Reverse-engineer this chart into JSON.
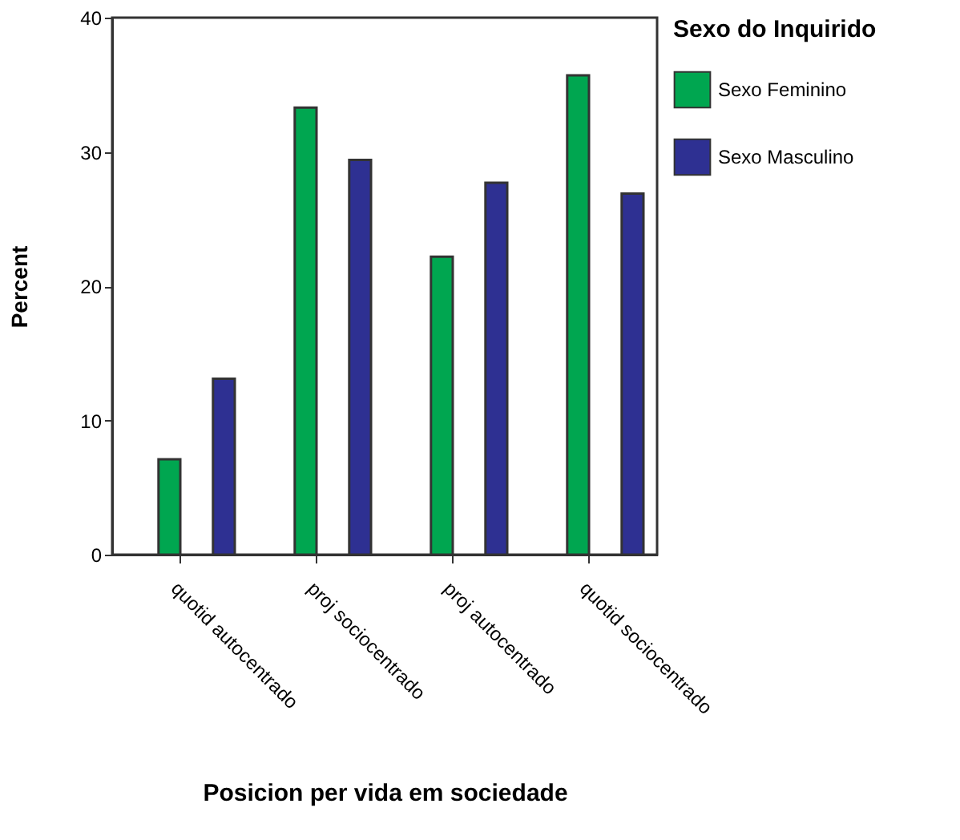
{
  "chart_data": {
    "type": "bar",
    "xlabel": "Posicion per vida em sociedade",
    "ylabel": "Percent",
    "legend_title": "Sexo do Inquirido",
    "legend": "right",
    "categories": [
      "quotid autocentrado",
      "proj sociocentrado",
      "proj autocentrado",
      "quotid sociocentrado"
    ],
    "series": [
      {
        "name": "Sexo Feminino",
        "color": "#00a650",
        "values": [
          7.1,
          33.3,
          22.2,
          35.7
        ]
      },
      {
        "name": "Sexo Masculino",
        "color": "#2e3092",
        "values": [
          13.1,
          29.4,
          27.7,
          26.9
        ]
      }
    ],
    "ylim": [
      0,
      40
    ],
    "yticks": [
      0,
      10,
      20,
      30,
      40
    ],
    "grid": false
  }
}
